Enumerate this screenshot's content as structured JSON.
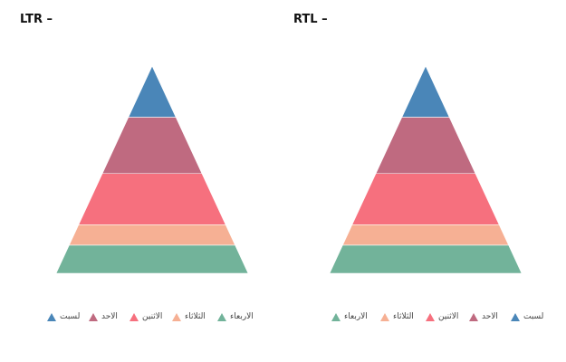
{
  "chart_data": [
    {
      "type": "pyramid",
      "title": "LTR –",
      "direction": "ltr",
      "series": [
        {
          "name": "لسبت",
          "value": 1.0,
          "color": "#4a86b8"
        },
        {
          "name": "الاحد",
          "value": 1.1,
          "color": "#bf6a80"
        },
        {
          "name": "الاثنين",
          "value": 1.0,
          "color": "#f6707e"
        },
        {
          "name": "الثلاثاء",
          "value": 0.4,
          "color": "#f6b094"
        },
        {
          "name": "الاربعاء",
          "value": 0.55,
          "color": "#72b39a"
        }
      ],
      "legend_position": "bottom"
    },
    {
      "type": "pyramid",
      "title": "RTL –",
      "direction": "rtl",
      "series": [
        {
          "name": "لسبت",
          "value": 1.0,
          "color": "#4a86b8"
        },
        {
          "name": "الاحد",
          "value": 1.1,
          "color": "#bf6a80"
        },
        {
          "name": "الاثنين",
          "value": 1.0,
          "color": "#f6707e"
        },
        {
          "name": "الثلاثاء",
          "value": 0.4,
          "color": "#f6b094"
        },
        {
          "name": "الاربعاء",
          "value": 0.55,
          "color": "#72b39a"
        }
      ],
      "legend_position": "bottom"
    }
  ]
}
